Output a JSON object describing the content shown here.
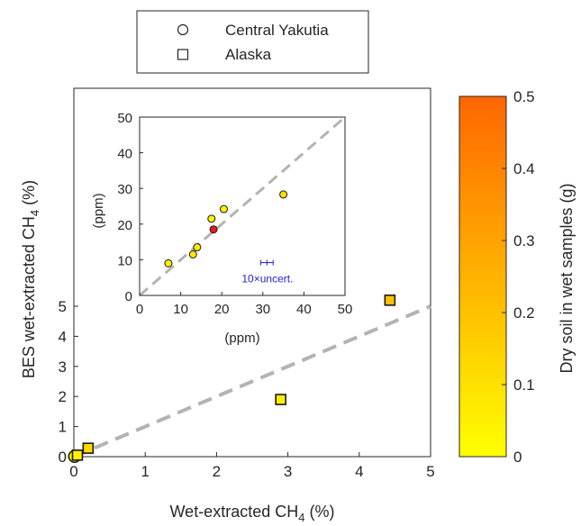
{
  "legend": {
    "items": [
      {
        "label": "Central Yakutia",
        "marker": "circle"
      },
      {
        "label": "Alaska",
        "marker": "square"
      }
    ]
  },
  "chart_data": [
    {
      "type": "scatter",
      "title": "",
      "xlabel": "Wet-extracted CH4 (%)",
      "xlabel_main": "Wet-extracted CH",
      "xlabel_sub": "4",
      "xlabel_suffix": " (%)",
      "ylabel": "BES wet-extracted CH4 (%)",
      "ylabel_main": "BES wet-extracted CH",
      "ylabel_sub": "4",
      "ylabel_suffix": " (%)",
      "xlim": [
        0,
        5
      ],
      "ylim": [
        0,
        5
      ],
      "xticks": [
        0,
        1,
        2,
        3,
        4,
        5
      ],
      "yticks": [
        0,
        1,
        2,
        3,
        4,
        5
      ],
      "reference_line": {
        "type": "1:1",
        "style": "dashed",
        "color": "#b3b3b3"
      },
      "series": [
        {
          "name": "Central Yakutia",
          "marker": "circle",
          "points": [
            {
              "x": 0.01,
              "y": 0.01,
              "soil_g": 0.02
            }
          ]
        },
        {
          "name": "Alaska",
          "marker": "square",
          "points": [
            {
              "x": 0.05,
              "y": 0.05,
              "soil_g": 0.05
            },
            {
              "x": 0.2,
              "y": 0.28,
              "soil_g": 0.12
            },
            {
              "x": 2.9,
              "y": 1.9,
              "soil_g": 0.05
            },
            {
              "x": 4.43,
              "y": 5.2,
              "soil_g": 0.2
            }
          ]
        }
      ]
    },
    {
      "type": "scatter",
      "title": "",
      "xlabel": "(ppm)",
      "ylabel": "(ppm)",
      "xlim": [
        0,
        50
      ],
      "ylim": [
        0,
        50
      ],
      "xticks": [
        0,
        10,
        20,
        30,
        40,
        50
      ],
      "yticks": [
        0,
        10,
        20,
        30,
        40,
        50
      ],
      "reference_line": {
        "type": "1:1",
        "style": "dashed",
        "color": "#b3b3b3"
      },
      "series": [
        {
          "name": "Central Yakutia",
          "marker": "circle",
          "points": [
            {
              "x": 7,
              "y": 9,
              "soil_g": 0.05
            },
            {
              "x": 13,
              "y": 11.5,
              "soil_g": 0.08
            },
            {
              "x": 14,
              "y": 13.5,
              "soil_g": 0.06
            },
            {
              "x": 17.5,
              "y": 21.5,
              "soil_g": 0.05
            },
            {
              "x": 18,
              "y": 18.5,
              "soil_g": 0.5,
              "color": "#e8181e"
            },
            {
              "x": 20.5,
              "y": 24.2,
              "soil_g": 0.04
            },
            {
              "x": 35,
              "y": 28.3,
              "soil_g": 0.1
            }
          ]
        }
      ],
      "error_bar": {
        "label": "10×uncert.",
        "x": 31,
        "y": 9.2,
        "x_err": 1.5,
        "color": "#1f1fd6"
      }
    }
  ],
  "colorbar": {
    "label": "Dry soil in wet samples (g)",
    "min": 0,
    "max": 0.5,
    "ticks": [
      "0",
      "0.1",
      "0.2",
      "0.3",
      "0.4",
      "0.5"
    ],
    "colormap": [
      "#ffff00",
      "#ff6600"
    ]
  }
}
